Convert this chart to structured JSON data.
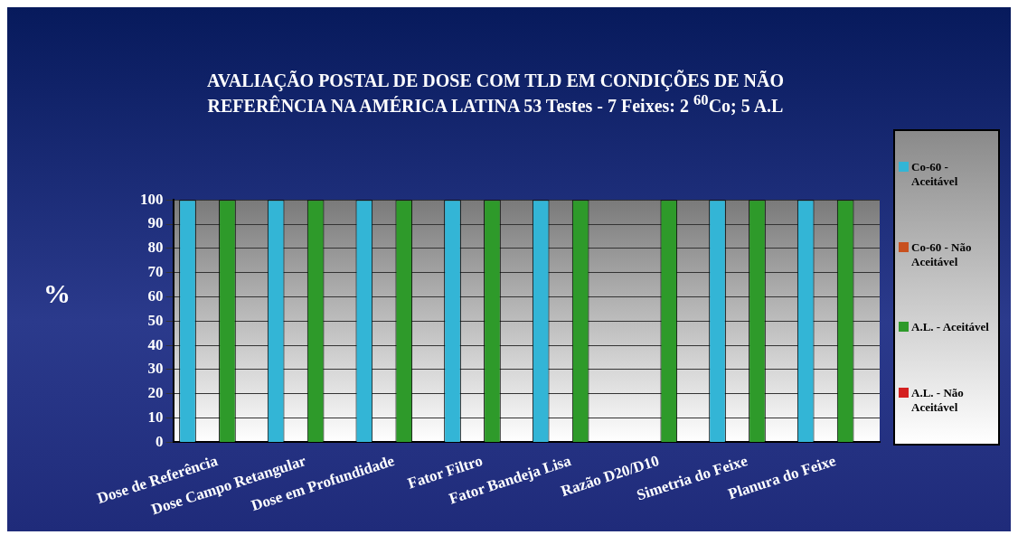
{
  "chart_data": {
    "type": "bar",
    "title": "AVALIAÇÃO POSTAL DE DOSE COM TLD EM CONDIÇÕES DE NÃO REFERÊNCIA NA AMÉRICA LATINA   53 Testes - 7 Feixes: 2 $^{60}$Co; 5 A.L",
    "ylabel": "%",
    "categories": [
      "Dose de Referência",
      "Dose Campo Retangular",
      "Dose em Profundidade",
      "Fator Filtro",
      "Fator Bandeja Lisa",
      "Razão D20/D10",
      "Simetria do Feixe",
      "Planura do Feixe"
    ],
    "series": [
      {
        "name": "Co-60 - Aceitável",
        "color": "#33b5d6",
        "values": [
          100,
          100,
          100,
          100,
          100,
          0,
          100,
          100
        ]
      },
      {
        "name": "Co-60 - Não Aceitável",
        "color": "#c8501e",
        "values": [
          0,
          0,
          0,
          0,
          0,
          0,
          0,
          0
        ]
      },
      {
        "name": "A.L. - Aceitável",
        "color": "#2e9a2a",
        "values": [
          100,
          100,
          100,
          100,
          100,
          100,
          100,
          100
        ]
      },
      {
        "name": "A.L. - Não Aceitável",
        "color": "#d42020",
        "values": [
          0,
          0,
          0,
          0,
          0,
          0,
          0,
          0
        ]
      }
    ],
    "ylim": [
      0,
      100
    ],
    "yticks": [
      0,
      10,
      20,
      30,
      40,
      50,
      60,
      70,
      80,
      90,
      100
    ],
    "grid": "y",
    "legend": "right"
  }
}
